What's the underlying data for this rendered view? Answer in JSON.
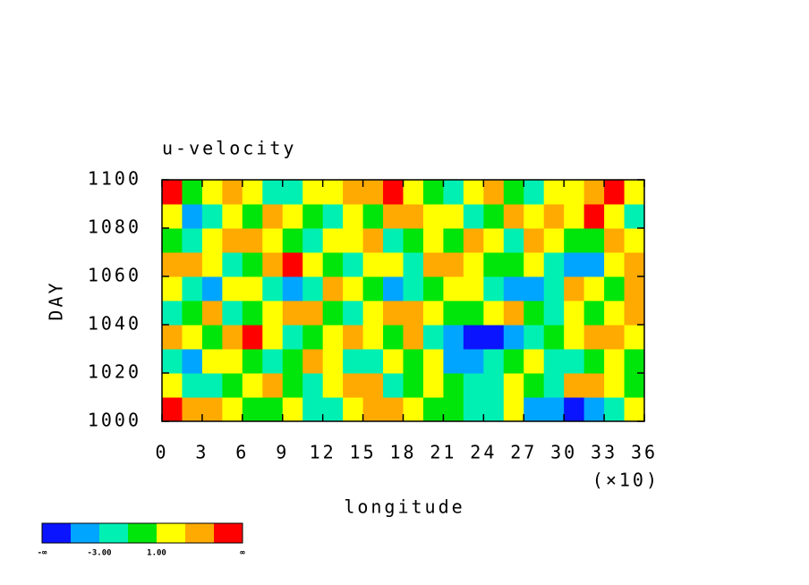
{
  "chart_data": {
    "type": "heatmap",
    "title": "u-velocity",
    "x_label": "longitude",
    "y_label": "DAY",
    "x_multiplier": "(×10)",
    "xlim": [
      0,
      360
    ],
    "ylim": [
      1000,
      1100
    ],
    "xticks": [
      {
        "value": 0,
        "label": "0"
      },
      {
        "value": 30,
        "label": "3"
      },
      {
        "value": 60,
        "label": "6"
      },
      {
        "value": 90,
        "label": "9"
      },
      {
        "value": 120,
        "label": "12"
      },
      {
        "value": 150,
        "label": "15"
      },
      {
        "value": 180,
        "label": "18"
      },
      {
        "value": 210,
        "label": "21"
      },
      {
        "value": 240,
        "label": "24"
      },
      {
        "value": 270,
        "label": "27"
      },
      {
        "value": 300,
        "label": "30"
      },
      {
        "value": 330,
        "label": "33"
      },
      {
        "value": 360,
        "label": "36"
      }
    ],
    "yticks": [
      1000,
      1020,
      1040,
      1060,
      1080,
      1100
    ],
    "x": [
      7.5,
      22.5,
      37.5,
      52.5,
      67.5,
      82.5,
      97.5,
      112.5,
      127.5,
      142.5,
      157.5,
      172.5,
      187.5,
      202.5,
      217.5,
      232.5,
      247.5,
      262.5,
      277.5,
      292.5,
      307.5,
      322.5,
      337.5,
      352.5
    ],
    "y": [
      1005,
      1015,
      1025,
      1035,
      1045,
      1055,
      1065,
      1075,
      1085,
      1095
    ],
    "z": [
      [
        5,
        4,
        3,
        1,
        -1,
        0,
        2,
        -2,
        -3,
        1,
        3,
        4,
        2,
        -1,
        0,
        -3,
        -2,
        1,
        -4,
        -5,
        -6,
        -5,
        -2,
        1
      ],
      [
        1,
        -2,
        -3,
        0,
        2,
        3,
        -1,
        -3,
        1,
        3,
        4,
        -2,
        -1,
        2,
        0,
        -3,
        -2,
        2,
        -1,
        -2,
        3,
        4,
        2,
        0
      ],
      [
        -3,
        -4,
        1,
        2,
        -1,
        -3,
        0,
        3,
        2,
        -2,
        -3,
        1,
        0,
        2,
        -4,
        -5,
        -3,
        -1,
        1,
        -2,
        -3,
        0,
        2,
        -1
      ],
      [
        4,
        2,
        -1,
        3,
        5,
        1,
        -2,
        0,
        2,
        4,
        1,
        -1,
        3,
        -2,
        -4,
        -6,
        -6,
        -5,
        -3,
        -1,
        2,
        4,
        3,
        1
      ],
      [
        -2,
        0,
        3,
        -3,
        -1,
        2,
        4,
        3,
        0,
        -2,
        1,
        3,
        4,
        2,
        -1,
        0,
        1,
        3,
        0,
        -2,
        1,
        -1,
        2,
        3
      ],
      [
        1,
        -3,
        -4,
        2,
        1,
        -2,
        -5,
        -3,
        3,
        2,
        -1,
        -4,
        -3,
        0,
        2,
        1,
        -3,
        -5,
        -4,
        -2,
        3,
        2,
        0,
        4
      ],
      [
        4,
        3,
        1,
        -2,
        0,
        4,
        5,
        2,
        -1,
        -3,
        1,
        2,
        -2,
        3,
        4,
        1,
        -1,
        0,
        2,
        -2,
        -4,
        -5,
        1,
        3
      ],
      [
        -1,
        -2,
        2,
        3,
        4,
        1,
        -1,
        -3,
        2,
        1,
        3,
        -2,
        0,
        2,
        -1,
        3,
        1,
        -2,
        4,
        2,
        0,
        -1,
        3,
        2
      ],
      [
        2,
        -4,
        -3,
        1,
        -1,
        3,
        2,
        0,
        -2,
        1,
        -1,
        3,
        4,
        2,
        1,
        -2,
        0,
        3,
        1,
        4,
        2,
        5,
        1,
        -2
      ],
      [
        5,
        -1,
        2,
        3,
        1,
        -2,
        -3,
        2,
        1,
        4,
        3,
        5,
        2,
        -1,
        -2,
        1,
        3,
        -1,
        -2,
        2,
        1,
        3,
        5,
        2
      ]
    ],
    "levels": [
      -5,
      -3,
      -1,
      1,
      3,
      5
    ],
    "colors": [
      "#0a14ff",
      "#00a5ff",
      "#00f0b4",
      "#00e60a",
      "#ffff00",
      "#ffaa00",
      "#ff0000"
    ],
    "colorbar_ticks": [
      {
        "value": -3,
        "label": "-3.00"
      },
      {
        "value": 1,
        "label": "1.00"
      }
    ],
    "colorbar_ends": [
      "-∞",
      "∞"
    ]
  }
}
